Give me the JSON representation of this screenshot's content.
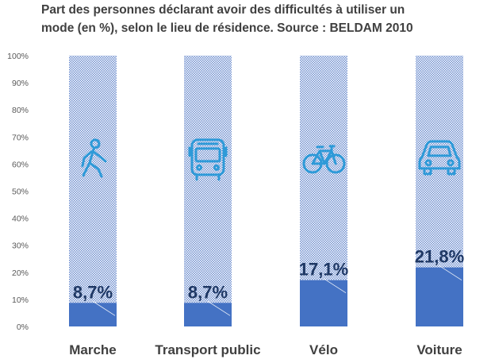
{
  "chart_data": {
    "type": "bar",
    "title": [
      "Part des personnes déclarant avoir des difficultés à utiliser un",
      "mode (en %), selon le lieu de résidence. Source : BELDAM 2010"
    ],
    "categories": [
      "Marche",
      "Transport public",
      "Vélo",
      "Voiture"
    ],
    "values": [
      8.7,
      8.7,
      17.1,
      21.8
    ],
    "data_labels": [
      "8,7%",
      "8,7%",
      "17,1%",
      "21,8%"
    ],
    "icons": [
      "walking-person-icon",
      "bus-icon",
      "bicycle-icon",
      "car-icon"
    ],
    "y_ticks": [
      "0%",
      "10%",
      "20%",
      "30%",
      "40%",
      "50%",
      "60%",
      "70%",
      "80%",
      "90%",
      "100%"
    ],
    "ylim": [
      0,
      100
    ],
    "xlabel": "",
    "ylabel": "",
    "grid": false,
    "colors": {
      "bar_fill": "#4472C4",
      "background_pattern": "#4472C4",
      "icon": "#2E9AD8",
      "data_label": "#1F3864",
      "category_label": "#404040",
      "tick_label": "#595959"
    }
  }
}
